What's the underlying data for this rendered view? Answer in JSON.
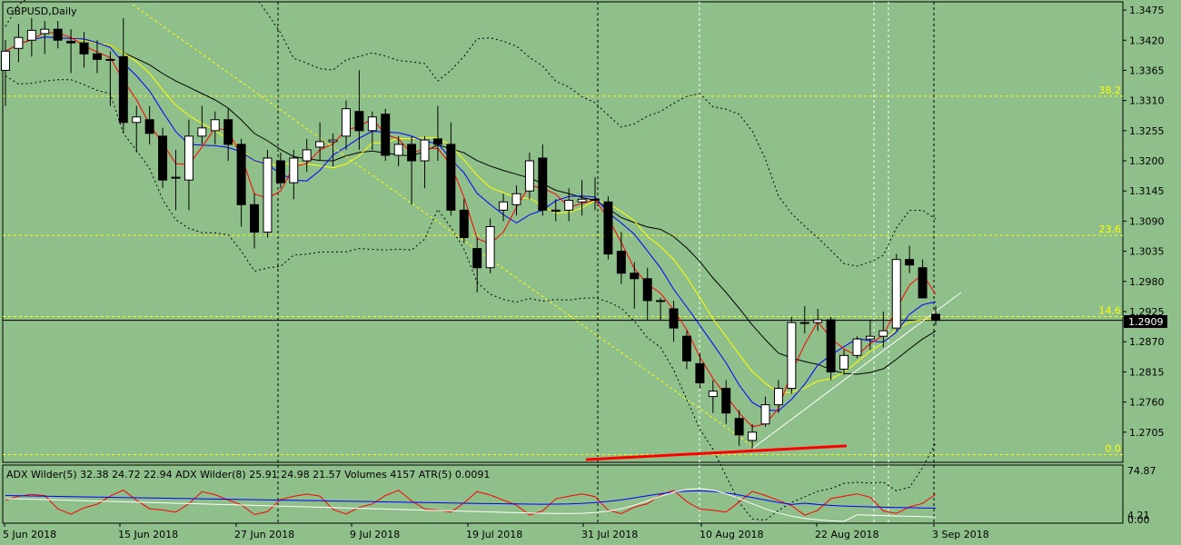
{
  "window": {
    "symbol_label": "GBPUSD,Daily"
  },
  "colors": {
    "background": "#8fbf8a",
    "bull_candle": "#ffffff",
    "bear_candle": "#000000",
    "grid": "#000000",
    "fib_level": "#ffff00",
    "price_marker_bg": "#000000",
    "price_marker_text": "#ffffff",
    "ma_black": "#000000",
    "ma_yellow": "#ffff00",
    "ma_blue": "#0000ff",
    "ma_red": "#ff0000",
    "bollinger": "#000000",
    "adx_white": "#ffffff",
    "adx_blue": "#0000ff",
    "adx_red": "#ff0000"
  },
  "price_axis": {
    "ticks": [
      "1.3475",
      "1.3420",
      "1.3365",
      "1.3310",
      "1.3255",
      "1.3200",
      "1.3145",
      "1.3090",
      "1.3035",
      "1.2980",
      "1.2925",
      "1.2870",
      "1.2815",
      "1.2760",
      "1.2705"
    ],
    "current_price_label": "1.2909",
    "range": [
      1.265,
      1.349
    ]
  },
  "date_axis": {
    "labels": [
      "5 Jun 2018",
      "15 Jun 2018",
      "27 Jun 2018",
      "9 Jul 2018",
      "19 Jul 2018",
      "31 Jul 2018",
      "10 Aug 2018",
      "22 Aug 2018",
      "3 Sep 2018"
    ]
  },
  "fibonacci": [
    {
      "label": "38.2",
      "price": 1.3318
    },
    {
      "label": "23.6",
      "price": 1.3064
    },
    {
      "label": "14.6",
      "price": 1.2916
    },
    {
      "label": "0.0",
      "price": 1.2664
    }
  ],
  "indicator": {
    "legend": "ADX Wilder(5) 32.38 24.72 22.94 ADX Wilder(8) 25.91 24.98 21.57 Volumes 4157 ATR(5) 0.0091",
    "axis_top": "74.87",
    "axis_bottom_a": "4.21",
    "axis_bottom_b": "0.00"
  },
  "chart_data": {
    "type": "candlestick",
    "series_label": "GBPUSD,Daily",
    "ylim": [
      1.265,
      1.349
    ],
    "candles": [
      {
        "o": 1.3365,
        "h": 1.342,
        "l": 1.33,
        "c": 1.34
      },
      {
        "o": 1.3405,
        "h": 1.345,
        "l": 1.338,
        "c": 1.3425
      },
      {
        "o": 1.342,
        "h": 1.346,
        "l": 1.339,
        "c": 1.3438
      },
      {
        "o": 1.3432,
        "h": 1.3455,
        "l": 1.3395,
        "c": 1.344
      },
      {
        "o": 1.344,
        "h": 1.3455,
        "l": 1.3405,
        "c": 1.342
      },
      {
        "o": 1.3418,
        "h": 1.344,
        "l": 1.336,
        "c": 1.3415
      },
      {
        "o": 1.3415,
        "h": 1.3435,
        "l": 1.337,
        "c": 1.3395
      },
      {
        "o": 1.3395,
        "h": 1.342,
        "l": 1.336,
        "c": 1.3385
      },
      {
        "o": 1.3385,
        "h": 1.34,
        "l": 1.33,
        "c": 1.3385
      },
      {
        "o": 1.339,
        "h": 1.346,
        "l": 1.325,
        "c": 1.327
      },
      {
        "o": 1.327,
        "h": 1.33,
        "l": 1.3215,
        "c": 1.328
      },
      {
        "o": 1.3275,
        "h": 1.33,
        "l": 1.323,
        "c": 1.325
      },
      {
        "o": 1.3245,
        "h": 1.326,
        "l": 1.315,
        "c": 1.3165
      },
      {
        "o": 1.317,
        "h": 1.322,
        "l": 1.311,
        "c": 1.317
      },
      {
        "o": 1.3165,
        "h": 1.3275,
        "l": 1.311,
        "c": 1.3245
      },
      {
        "o": 1.3245,
        "h": 1.33,
        "l": 1.323,
        "c": 1.326
      },
      {
        "o": 1.3255,
        "h": 1.329,
        "l": 1.323,
        "c": 1.3275
      },
      {
        "o": 1.3275,
        "h": 1.3295,
        "l": 1.32,
        "c": 1.323
      },
      {
        "o": 1.323,
        "h": 1.324,
        "l": 1.308,
        "c": 1.312
      },
      {
        "o": 1.312,
        "h": 1.314,
        "l": 1.304,
        "c": 1.307
      },
      {
        "o": 1.307,
        "h": 1.322,
        "l": 1.306,
        "c": 1.3205
      },
      {
        "o": 1.32,
        "h": 1.3215,
        "l": 1.315,
        "c": 1.316
      },
      {
        "o": 1.316,
        "h": 1.322,
        "l": 1.313,
        "c": 1.3205
      },
      {
        "o": 1.32,
        "h": 1.324,
        "l": 1.318,
        "c": 1.322
      },
      {
        "o": 1.3225,
        "h": 1.327,
        "l": 1.32,
        "c": 1.3235
      },
      {
        "o": 1.3235,
        "h": 1.325,
        "l": 1.319,
        "c": 1.3238
      },
      {
        "o": 1.3245,
        "h": 1.331,
        "l": 1.322,
        "c": 1.3295
      },
      {
        "o": 1.329,
        "h": 1.3365,
        "l": 1.322,
        "c": 1.3255
      },
      {
        "o": 1.3255,
        "h": 1.329,
        "l": 1.322,
        "c": 1.328
      },
      {
        "o": 1.3285,
        "h": 1.3295,
        "l": 1.32,
        "c": 1.321
      },
      {
        "o": 1.321,
        "h": 1.3245,
        "l": 1.319,
        "c": 1.323
      },
      {
        "o": 1.323,
        "h": 1.3245,
        "l": 1.312,
        "c": 1.32
      },
      {
        "o": 1.32,
        "h": 1.3245,
        "l": 1.315,
        "c": 1.3238
      },
      {
        "o": 1.324,
        "h": 1.33,
        "l": 1.32,
        "c": 1.323
      },
      {
        "o": 1.323,
        "h": 1.327,
        "l": 1.31,
        "c": 1.311
      },
      {
        "o": 1.311,
        "h": 1.313,
        "l": 1.305,
        "c": 1.306
      },
      {
        "o": 1.304,
        "h": 1.306,
        "l": 1.296,
        "c": 1.3005
      },
      {
        "o": 1.3005,
        "h": 1.3095,
        "l": 1.2995,
        "c": 1.308
      },
      {
        "o": 1.311,
        "h": 1.314,
        "l": 1.309,
        "c": 1.3125
      },
      {
        "o": 1.312,
        "h": 1.3155,
        "l": 1.31,
        "c": 1.314
      },
      {
        "o": 1.3145,
        "h": 1.3215,
        "l": 1.313,
        "c": 1.32
      },
      {
        "o": 1.3205,
        "h": 1.323,
        "l": 1.31,
        "c": 1.311
      },
      {
        "o": 1.311,
        "h": 1.313,
        "l": 1.309,
        "c": 1.3108
      },
      {
        "o": 1.311,
        "h": 1.315,
        "l": 1.309,
        "c": 1.3128
      },
      {
        "o": 1.3125,
        "h": 1.3165,
        "l": 1.31,
        "c": 1.313
      },
      {
        "o": 1.313,
        "h": 1.317,
        "l": 1.311,
        "c": 1.3128
      },
      {
        "o": 1.3125,
        "h": 1.3135,
        "l": 1.302,
        "c": 1.303
      },
      {
        "o": 1.3035,
        "h": 1.307,
        "l": 1.2975,
        "c": 1.2995
      },
      {
        "o": 1.2995,
        "h": 1.3015,
        "l": 1.293,
        "c": 1.2985
      },
      {
        "o": 1.2985,
        "h": 1.3005,
        "l": 1.291,
        "c": 1.2945
      },
      {
        "o": 1.2945,
        "h": 1.295,
        "l": 1.291,
        "c": 1.2945
      },
      {
        "o": 1.293,
        "h": 1.2945,
        "l": 1.287,
        "c": 1.2895
      },
      {
        "o": 1.288,
        "h": 1.289,
        "l": 1.282,
        "c": 1.2835
      },
      {
        "o": 1.283,
        "h": 1.285,
        "l": 1.2785,
        "c": 1.2795
      },
      {
        "o": 1.277,
        "h": 1.28,
        "l": 1.274,
        "c": 1.278
      },
      {
        "o": 1.2785,
        "h": 1.28,
        "l": 1.272,
        "c": 1.274
      },
      {
        "o": 1.273,
        "h": 1.2745,
        "l": 1.268,
        "c": 1.27
      },
      {
        "o": 1.269,
        "h": 1.272,
        "l": 1.2675,
        "c": 1.2705
      },
      {
        "o": 1.272,
        "h": 1.277,
        "l": 1.2715,
        "c": 1.2755
      },
      {
        "o": 1.2755,
        "h": 1.28,
        "l": 1.274,
        "c": 1.2785
      },
      {
        "o": 1.2785,
        "h": 1.2915,
        "l": 1.2775,
        "c": 1.2905
      },
      {
        "o": 1.2905,
        "h": 1.2935,
        "l": 1.2885,
        "c": 1.2905
      },
      {
        "o": 1.2905,
        "h": 1.293,
        "l": 1.289,
        "c": 1.291
      },
      {
        "o": 1.291,
        "h": 1.2915,
        "l": 1.28,
        "c": 1.2815
      },
      {
        "o": 1.282,
        "h": 1.2855,
        "l": 1.281,
        "c": 1.2845
      },
      {
        "o": 1.2845,
        "h": 1.288,
        "l": 1.284,
        "c": 1.2875
      },
      {
        "o": 1.2875,
        "h": 1.291,
        "l": 1.2855,
        "c": 1.288
      },
      {
        "o": 1.288,
        "h": 1.2925,
        "l": 1.286,
        "c": 1.289
      },
      {
        "o": 1.2895,
        "h": 1.303,
        "l": 1.289,
        "c": 1.302
      },
      {
        "o": 1.302,
        "h": 1.3045,
        "l": 1.2995,
        "c": 1.301
      },
      {
        "o": 1.3005,
        "h": 1.302,
        "l": 1.295,
        "c": 1.295
      },
      {
        "o": 1.292,
        "h": 1.2935,
        "l": 1.29,
        "c": 1.2909
      }
    ]
  }
}
